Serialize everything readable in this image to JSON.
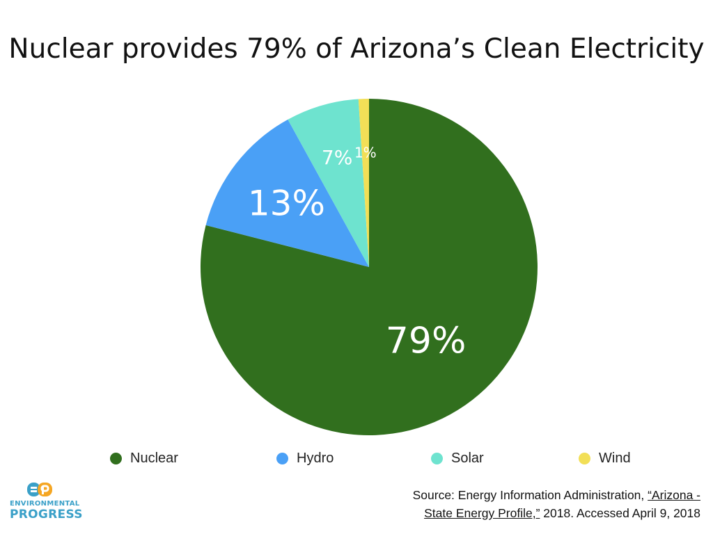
{
  "chart_data": {
    "type": "pie",
    "title": "Nuclear provides 79% of Arizona’s Clean Electricity",
    "categories": [
      "Nuclear",
      "Hydro",
      "Solar",
      "Wind"
    ],
    "values": [
      79,
      13,
      7,
      1
    ],
    "labels": [
      "79%",
      "13%",
      "7%",
      "1%"
    ],
    "colors": [
      "#316f1e",
      "#4aa0f6",
      "#6ee3cf",
      "#f2df57"
    ],
    "legend_position": "bottom"
  },
  "legend": {
    "items": [
      {
        "label": "Nuclear",
        "color": "#316f1e"
      },
      {
        "label": "Hydro",
        "color": "#4aa0f6"
      },
      {
        "label": "Solar",
        "color": "#6ee3cf"
      },
      {
        "label": "Wind",
        "color": "#f2df57"
      }
    ]
  },
  "logo": {
    "line1": "ENVIRONMENTAL",
    "line2": "PROGRESS",
    "colors": {
      "blue": "#3aa0c8",
      "orange": "#f5a623"
    }
  },
  "source": {
    "prefix": "Source: Energy Information Administration, ",
    "link_part1": "“Arizona -",
    "link_part2": "State Energy Profile,”",
    "suffix": " 2018. Accessed April 9, 2018"
  }
}
